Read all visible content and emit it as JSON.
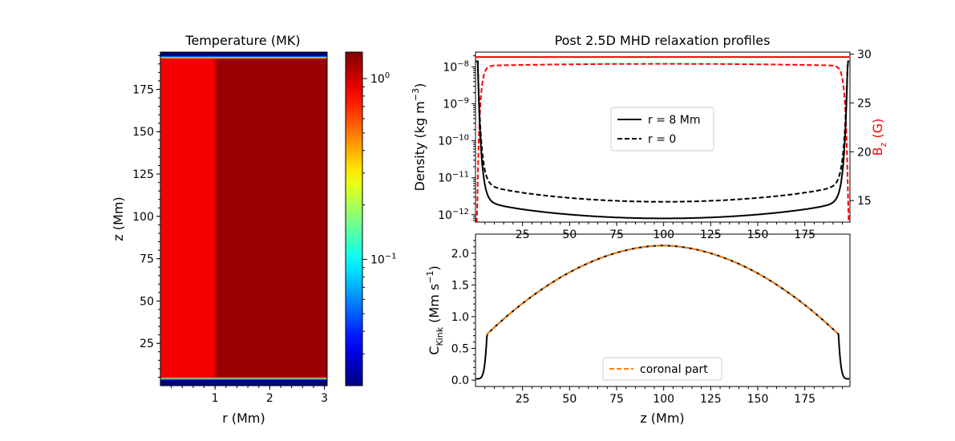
{
  "chart_data": [
    {
      "type": "heatmap",
      "title": "Temperature (MK)",
      "xlabel": "r (Mm)",
      "ylabel": "z (Mm)",
      "xlim": [
        0,
        3.05
      ],
      "ylim": [
        0,
        197
      ],
      "xticks": [
        1,
        2,
        3
      ],
      "yticks": [
        25,
        50,
        75,
        100,
        125,
        150,
        175
      ],
      "colormap": "jet",
      "color_scale": "log",
      "colorbar_range": [
        0.02,
        1.4
      ],
      "colorbar_ticks": [
        {
          "value": 1.0,
          "label_base": "10",
          "label_exp": "0"
        },
        {
          "value": 0.1,
          "label_base": "10",
          "label_exp": "−1"
        }
      ],
      "regions": [
        {
          "name": "interior",
          "r_range": [
            0,
            1.0
          ],
          "temperature_MK": 0.85
        },
        {
          "name": "exterior",
          "r_range": [
            1.0,
            3.05
          ],
          "temperature_MK": 1.25
        }
      ],
      "chromosphere_temperature_MK": 0.02,
      "transition_region_z": [
        5,
        193
      ]
    },
    {
      "type": "line",
      "title": "Post 2.5D MHD relaxation profiles",
      "xlabel": "",
      "ylabel": "Density (kg m",
      "ylabel_sup": "−3",
      "ylabel_tail": ")",
      "y2label": "B",
      "y2label_sub": "z",
      "y2label_tail": " (G)",
      "xlim": [
        0,
        199
      ],
      "ylim_log10": [
        -12.2,
        -7.6
      ],
      "y_scale": "log",
      "y2lim": [
        12.8,
        30.2
      ],
      "xticks": [
        25,
        50,
        75,
        100,
        125,
        150,
        175
      ],
      "yticks": [
        {
          "exp": -8,
          "label_base": "10",
          "label_exp": "−8"
        },
        {
          "exp": -9,
          "label_base": "10",
          "label_exp": "−9"
        },
        {
          "exp": -10,
          "label_base": "10",
          "label_exp": "−10"
        },
        {
          "exp": -11,
          "label_base": "10",
          "label_exp": "−11"
        },
        {
          "exp": -12,
          "label_base": "10",
          "label_exp": "−12"
        }
      ],
      "y2ticks": [
        15,
        20,
        25,
        30
      ],
      "legend": [
        {
          "label": "r = 8 Mm",
          "style": "solid"
        },
        {
          "label": "r = 0",
          "style": "dashed"
        }
      ],
      "legend_position": "center",
      "series": [
        {
          "name": "r = 8 Mm",
          "axis": "left",
          "color": "#000000",
          "style": "solid",
          "min_log10_density_at_z100": -12.1,
          "edge_log10_density": -7.85
        },
        {
          "name": "r = 0",
          "axis": "left",
          "color": "#000000",
          "style": "dashed",
          "min_log10_density_at_z100": -11.65,
          "edge_log10_density": -7.85
        },
        {
          "name": "B_z r = 8 Mm",
          "axis": "right",
          "color": "#ff0000",
          "style": "solid",
          "typical_value_G": 29.7
        },
        {
          "name": "B_z r = 0",
          "axis": "right",
          "color": "#ff0000",
          "style": "dashed",
          "typical_value_G": 29.0,
          "edge_value_G": 13
        }
      ]
    },
    {
      "type": "line",
      "xlabel": "z (Mm)",
      "ylabel": "C",
      "ylabel_sub": "Kink",
      "ylabel_tail": " (Mm s",
      "ylabel_sup": "−1",
      "ylabel_end": ")",
      "xlim": [
        0,
        199
      ],
      "ylim": [
        -0.1,
        2.3
      ],
      "xticks": [
        25,
        50,
        75,
        100,
        125,
        150,
        175
      ],
      "yticks": [
        0.0,
        0.5,
        1.0,
        1.5,
        2.0
      ],
      "ytick_labels": [
        "0.0",
        "0.5",
        "1.0",
        "1.5",
        "2.0"
      ],
      "legend": [
        {
          "label": "coronal part",
          "style": "dashed",
          "color": "#ff7f0e"
        }
      ],
      "legend_position": "lower center",
      "series": [
        {
          "name": "C_kink",
          "color": "#000000",
          "style": "solid",
          "peak": {
            "z": 100,
            "value": 2.12
          },
          "edge_value": 0.02,
          "coronal_base_value": 0.72
        },
        {
          "name": "coronal part",
          "color": "#ff7f0e",
          "style": "dashed",
          "z_range": [
            6,
            193
          ]
        }
      ]
    }
  ],
  "colors": {
    "red": "#ff0000",
    "orange": "#ff7f0e",
    "black": "#000000"
  }
}
